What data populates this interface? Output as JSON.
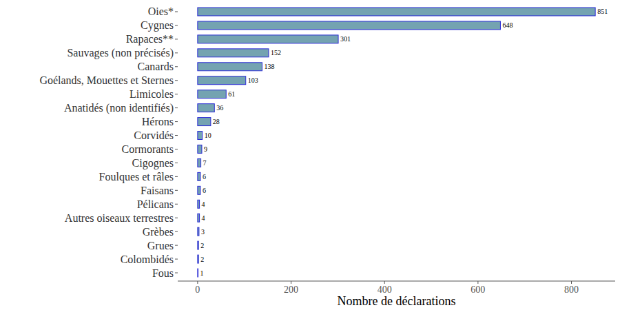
{
  "chart_data": {
    "type": "bar",
    "orientation": "horizontal",
    "categories": [
      "Oies*",
      "Cygnes",
      "Rapaces**",
      "Sauvages (non précisés)",
      "Canards",
      "Goélands, Mouettes et Sternes",
      "Limicoles",
      "Anatidés (non identifiés)",
      "Hérons",
      "Corvidés",
      "Cormorants",
      "Cigognes",
      "Foulques et râles",
      "Faisans",
      "Pélicans",
      "Autres oiseaux terrestres",
      "Grèbes",
      "Grues",
      "Colombidés",
      "Fous"
    ],
    "values": [
      851,
      648,
      301,
      152,
      138,
      103,
      61,
      36,
      28,
      10,
      9,
      7,
      6,
      6,
      4,
      4,
      3,
      2,
      2,
      1
    ],
    "color": "#74a3b1",
    "x_label": "Nombre de déclarations",
    "xlim": [
      -42.55,
      893.55
    ],
    "xticks": [
      0,
      200,
      400,
      600,
      800
    ],
    "grid": false,
    "data_labels": true
  }
}
